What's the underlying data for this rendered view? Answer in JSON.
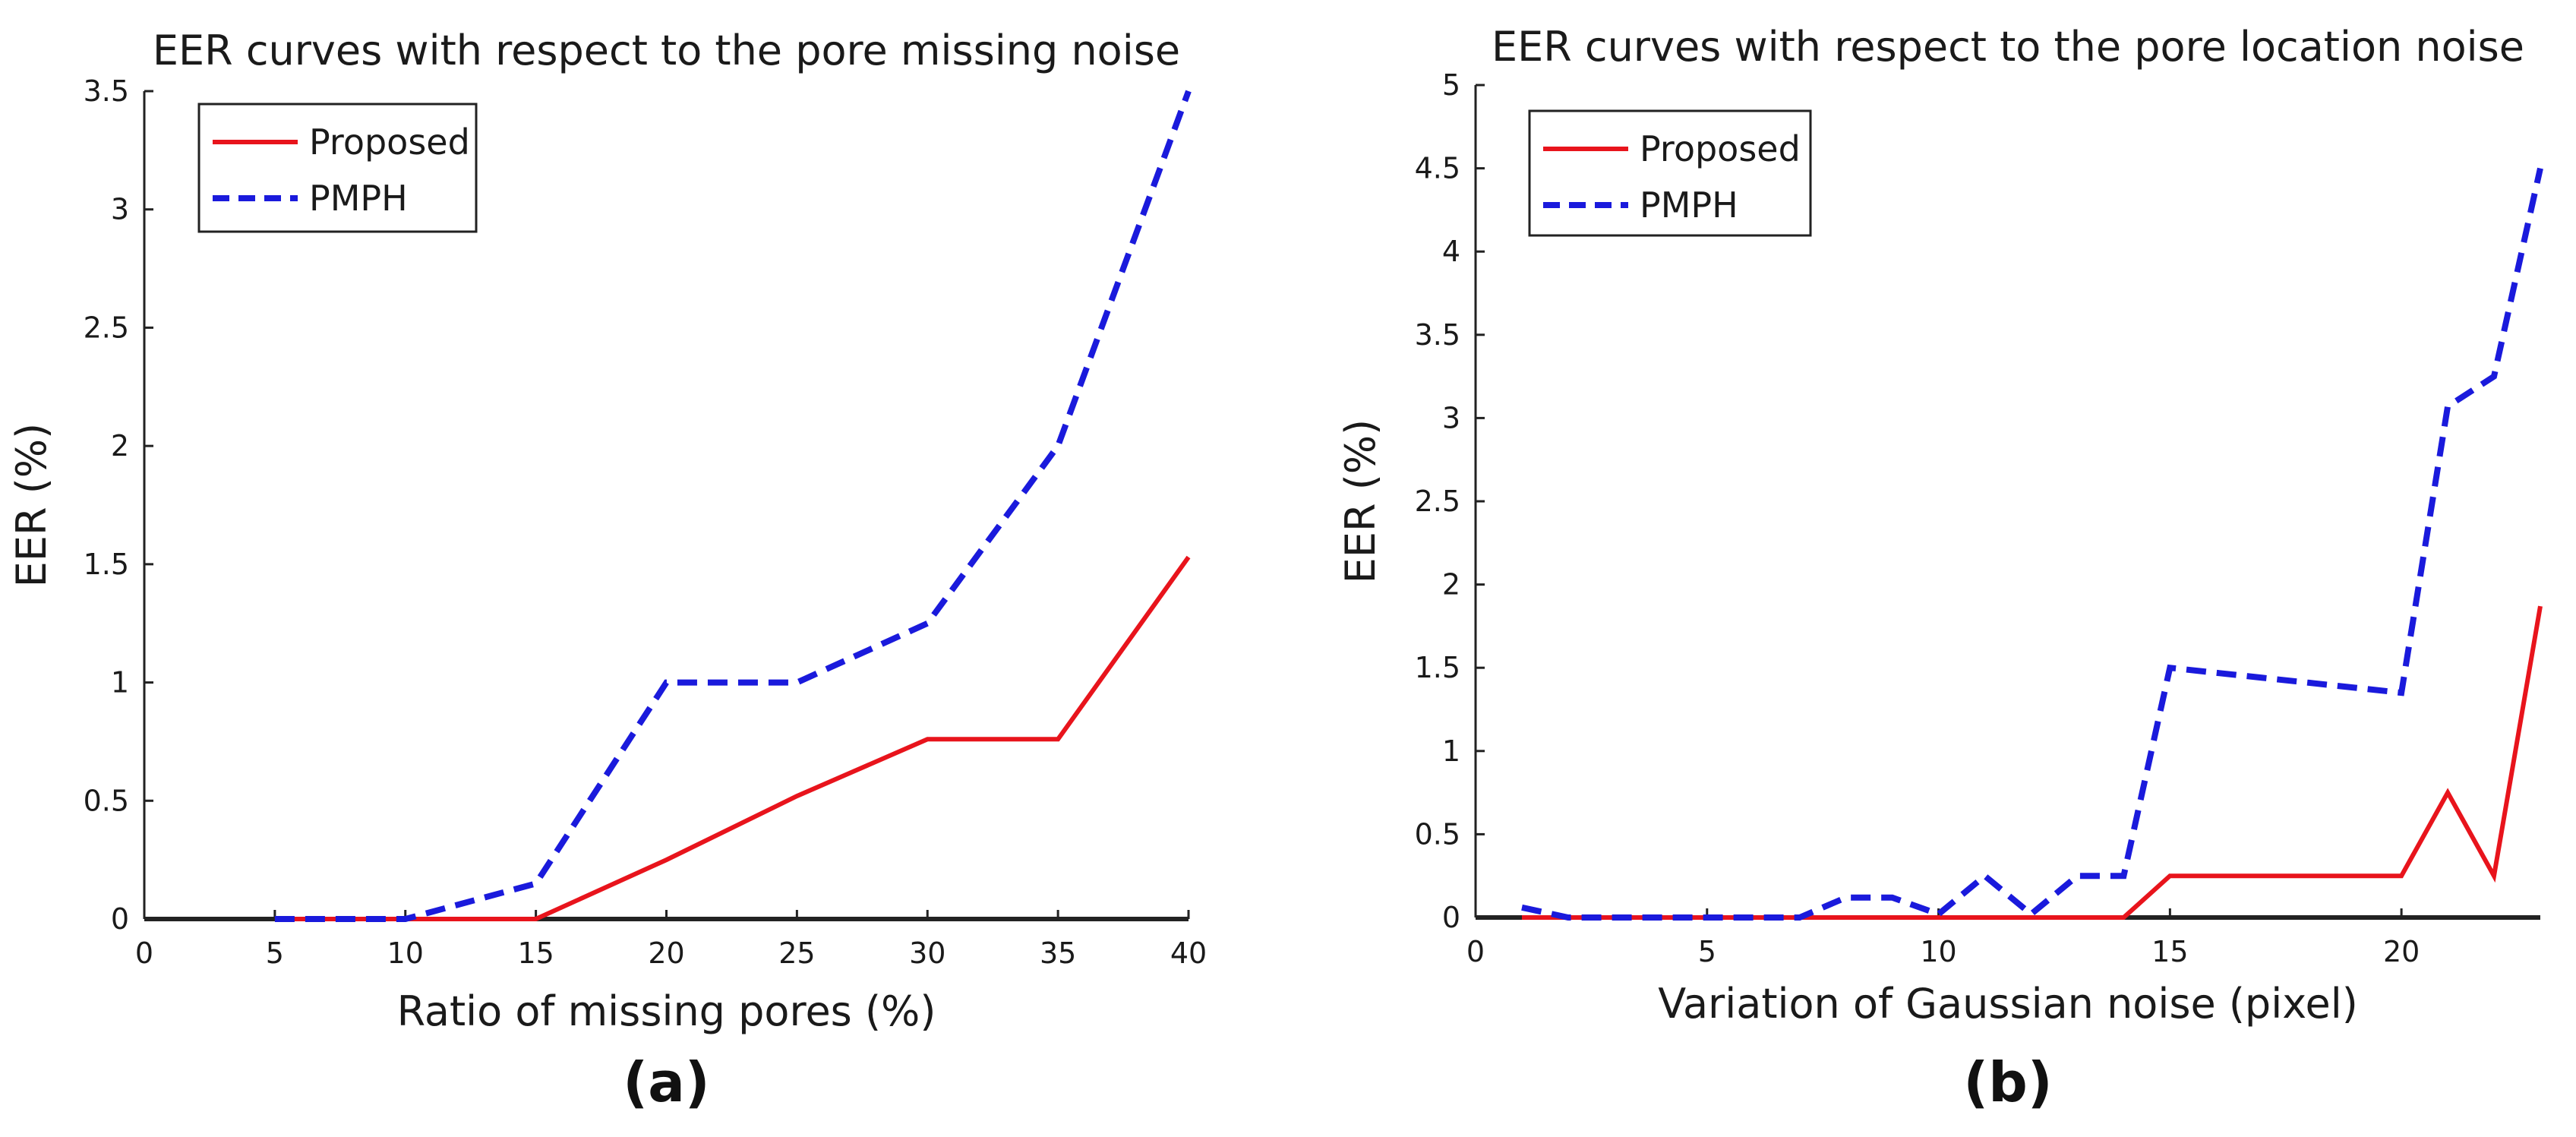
{
  "chart_data": [
    {
      "type": "line",
      "title": "EER curves with respect to the pore missing noise",
      "xlabel": "Ratio of missing pores (%)",
      "ylabel": "EER (%)",
      "panel_label": "(a)",
      "xlim": [
        0,
        40
      ],
      "ylim": [
        0,
        3.5
      ],
      "xticks": [
        0,
        5,
        10,
        15,
        20,
        25,
        30,
        35,
        40
      ],
      "yticks": [
        0,
        0.5,
        1,
        1.5,
        2,
        2.5,
        3,
        3.5
      ],
      "legend_position": "top-left",
      "series": [
        {
          "name": "Proposed",
          "color": "#e8141c",
          "style": "solid",
          "x": [
            5,
            10,
            15,
            20,
            25,
            30,
            35,
            40
          ],
          "y": [
            0,
            0,
            0,
            0.25,
            0.52,
            0.76,
            0.76,
            1.53
          ]
        },
        {
          "name": "PMPH",
          "color": "#1a1adc",
          "style": "dashed",
          "x": [
            5,
            10,
            15,
            20,
            25,
            30,
            35,
            40
          ],
          "y": [
            0,
            0,
            0.15,
            1.0,
            1.0,
            1.25,
            2.0,
            3.5
          ]
        }
      ]
    },
    {
      "type": "line",
      "title": "EER curves with respect to the pore location noise",
      "xlabel": "Variation of Gaussian noise (pixel)",
      "ylabel": "EER (%)",
      "panel_label": "(b)",
      "xlim": [
        0,
        23
      ],
      "ylim": [
        0,
        5
      ],
      "xticks": [
        0,
        5,
        10,
        15,
        20
      ],
      "yticks": [
        0,
        0.5,
        1,
        1.5,
        2,
        2.5,
        3,
        3.5,
        4,
        4.5,
        5
      ],
      "legend_position": "top-left",
      "series": [
        {
          "name": "Proposed",
          "color": "#e8141c",
          "style": "solid",
          "x": [
            1,
            2,
            3,
            4,
            5,
            6,
            7,
            8,
            9,
            10,
            11,
            12,
            13,
            14,
            15,
            16,
            17,
            18,
            19,
            20,
            21,
            22,
            23
          ],
          "y": [
            0,
            0,
            0,
            0,
            0,
            0,
            0,
            0,
            0,
            0,
            0,
            0,
            0,
            0,
            0.25,
            0.25,
            0.25,
            0.25,
            0.25,
            0.25,
            0.75,
            0.25,
            1.87
          ]
        },
        {
          "name": "PMPH",
          "color": "#1a1adc",
          "style": "dashed",
          "x": [
            1,
            2,
            3,
            4,
            5,
            6,
            7,
            8,
            9,
            10,
            11,
            12,
            13,
            14,
            15,
            16,
            17,
            18,
            19,
            20,
            21,
            22,
            23
          ],
          "y": [
            0.06,
            0,
            0,
            0,
            0,
            0,
            0,
            0.12,
            0.12,
            0.02,
            0.25,
            0.02,
            0.25,
            0.25,
            1.5,
            1.47,
            1.44,
            1.41,
            1.38,
            1.35,
            3.07,
            3.25,
            4.5
          ]
        }
      ]
    }
  ]
}
